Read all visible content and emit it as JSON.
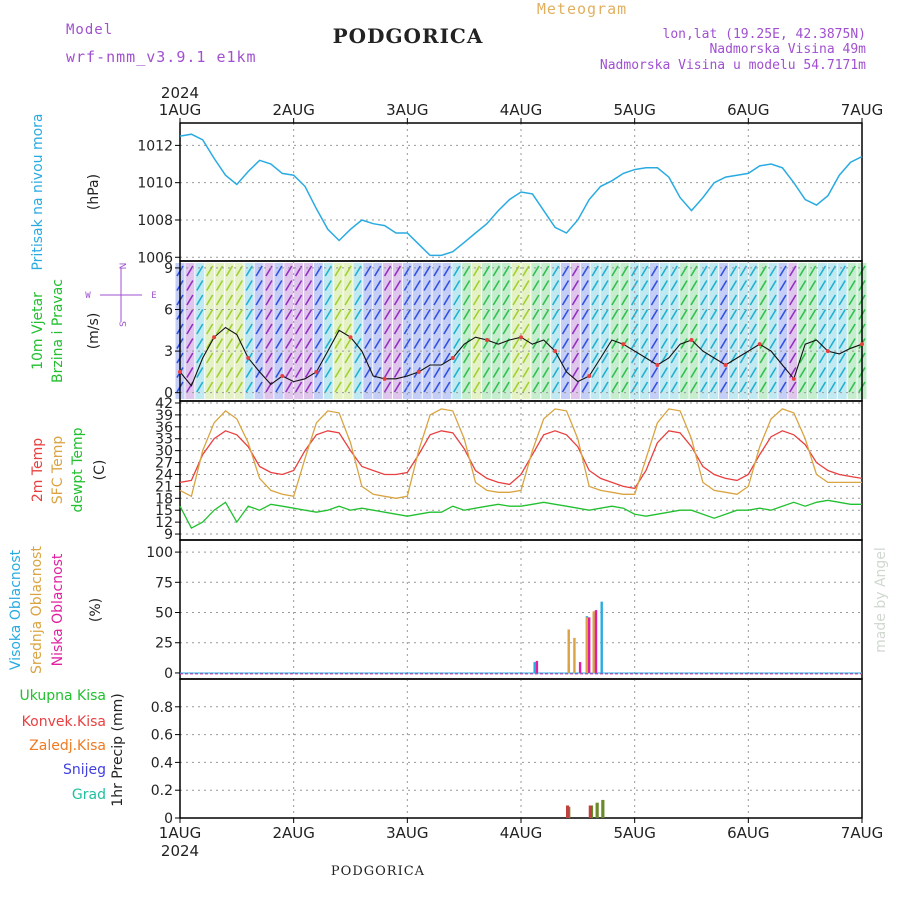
{
  "header": {
    "model_label": "Model",
    "model_name": "wrf-nmm_v3.9.1 e1km",
    "station_title": "PODGORICA",
    "meteogram_label": "Meteogram",
    "coords": "lon,lat (19.25E, 42.3875N)",
    "elevation": "Nadmorska Visina 49m",
    "model_elevation": "Nadmorska Visina u modelu 54.7171m"
  },
  "footer": {
    "station": "PODGORICA",
    "credit": "made by Angel"
  },
  "time_axis": {
    "year": "2024",
    "ticks": [
      "1AUG",
      "2AUG",
      "3AUG",
      "4AUG",
      "5AUG",
      "6AUG",
      "7AUG"
    ]
  },
  "wind_compass": {
    "n": "N",
    "s": "S",
    "w": "W",
    "e": "E"
  },
  "colors": {
    "pressure": "#29abe2",
    "temp2m": "#e84040",
    "sfc_temp": "#d9a441",
    "dewpt": "#22c030",
    "high_cloud": "#29abe2",
    "mid_cloud": "#d9a441",
    "low_cloud": "#e020a0",
    "total_precip": "#22c030",
    "convective": "#e84040",
    "grid_scale": "#f07a20",
    "snow": "#4040e0",
    "graupel": "#20c0a0"
  },
  "chart_data": [
    {
      "type": "line",
      "panel": "pressure",
      "ylabel_title": "Pritisak na nivou mora",
      "ylabel_unit": "(hPa)",
      "ylim": [
        1005.8,
        1013.2
      ],
      "yticks": [
        1006,
        1008,
        1010,
        1012
      ],
      "xlim": [
        0,
        6
      ],
      "grid": true,
      "series": [
        {
          "x": [
            0,
            0.1,
            0.2,
            0.3,
            0.4,
            0.5,
            0.6,
            0.7,
            0.8,
            0.9,
            1.0,
            1.1,
            1.2,
            1.3,
            1.4,
            1.5,
            1.6,
            1.7,
            1.8,
            1.9,
            2.0,
            2.1,
            2.2,
            2.3,
            2.4,
            2.5,
            2.6,
            2.7,
            2.8,
            2.9,
            3.0,
            3.1,
            3.2,
            3.3,
            3.4,
            3.5,
            3.6,
            3.7,
            3.8,
            3.9,
            4.0,
            4.1,
            4.2,
            4.3,
            4.4,
            4.5,
            4.6,
            4.7,
            4.8,
            4.9,
            5.0,
            5.1,
            5.2,
            5.3,
            5.4,
            5.5,
            5.6,
            5.7,
            5.8,
            5.9,
            6.0
          ],
          "values": [
            1012.5,
            1012.6,
            1012.3,
            1011.3,
            1010.4,
            1009.9,
            1010.6,
            1011.2,
            1011.0,
            1010.5,
            1010.4,
            1009.8,
            1008.6,
            1007.5,
            1006.9,
            1007.5,
            1008.0,
            1007.8,
            1007.7,
            1007.3,
            1007.3,
            1006.7,
            1006.1,
            1006.1,
            1006.3,
            1006.8,
            1007.3,
            1007.8,
            1008.5,
            1009.1,
            1009.5,
            1009.4,
            1008.5,
            1007.6,
            1007.3,
            1008.0,
            1009.1,
            1009.8,
            1010.1,
            1010.5,
            1010.7,
            1010.8,
            1010.8,
            1010.3,
            1009.2,
            1008.5,
            1009.2,
            1010.0,
            1010.3,
            1010.4,
            1010.5,
            1010.9,
            1011.0,
            1010.8,
            1010.0,
            1009.1,
            1008.8,
            1009.3,
            1010.4,
            1011.1,
            1011.4
          ]
        }
      ]
    },
    {
      "type": "line",
      "panel": "wind",
      "ylabel_title1": "10m Vjetar",
      "ylabel_title2": "Brzina i Pravac",
      "ylabel_unit": "(m/s)",
      "ylim": [
        -0.6,
        9.5
      ],
      "yticks": [
        0,
        3,
        6,
        9
      ],
      "xlim": [
        0,
        6
      ],
      "grid": true,
      "series": [
        {
          "name": "speed",
          "x": [
            0,
            0.1,
            0.2,
            0.3,
            0.4,
            0.5,
            0.6,
            0.7,
            0.8,
            0.9,
            1.0,
            1.1,
            1.2,
            1.3,
            1.4,
            1.5,
            1.6,
            1.7,
            1.8,
            1.9,
            2.0,
            2.1,
            2.2,
            2.3,
            2.4,
            2.5,
            2.6,
            2.7,
            2.8,
            2.9,
            3.0,
            3.1,
            3.2,
            3.3,
            3.4,
            3.5,
            3.6,
            3.7,
            3.8,
            3.9,
            4.0,
            4.1,
            4.2,
            4.3,
            4.4,
            4.5,
            4.6,
            4.7,
            4.8,
            4.9,
            5.0,
            5.1,
            5.2,
            5.3,
            5.4,
            5.5,
            5.6,
            5.7,
            5.8,
            5.9,
            6.0
          ],
          "values": [
            1.5,
            0.5,
            2.5,
            4.0,
            4.7,
            4.2,
            2.5,
            1.5,
            0.6,
            1.2,
            0.8,
            1.0,
            1.5,
            3.0,
            4.5,
            4.0,
            3.0,
            1.2,
            1.0,
            1.0,
            1.2,
            1.5,
            2.0,
            2.0,
            2.5,
            3.5,
            4.0,
            3.8,
            3.5,
            3.8,
            4.0,
            3.5,
            3.8,
            3.0,
            1.5,
            0.8,
            1.2,
            2.5,
            3.8,
            3.5,
            3.0,
            2.5,
            2.0,
            2.5,
            3.5,
            3.8,
            3.0,
            2.5,
            2.0,
            2.5,
            3.0,
            3.5,
            3.0,
            2.0,
            1.0,
            3.5,
            3.8,
            3.0,
            2.8,
            3.2,
            3.5
          ]
        }
      ]
    },
    {
      "type": "line",
      "panel": "temperature",
      "ylabel_title1": "2m Temp",
      "ylabel_title2": "SFC Temp",
      "ylabel_title3": "dewpt Temp",
      "ylabel_unit": "(C)",
      "ylim": [
        7.5,
        42.5
      ],
      "yticks": [
        9,
        12,
        15,
        18,
        21,
        24,
        27,
        30,
        33,
        36,
        39,
        42
      ],
      "xlim": [
        0,
        6
      ],
      "grid": true,
      "x": [
        0,
        0.1,
        0.2,
        0.3,
        0.4,
        0.5,
        0.6,
        0.7,
        0.8,
        0.9,
        1.0,
        1.1,
        1.2,
        1.3,
        1.4,
        1.5,
        1.6,
        1.7,
        1.8,
        1.9,
        2.0,
        2.1,
        2.2,
        2.3,
        2.4,
        2.5,
        2.6,
        2.7,
        2.8,
        2.9,
        3.0,
        3.1,
        3.2,
        3.3,
        3.4,
        3.5,
        3.6,
        3.7,
        3.8,
        3.9,
        4.0,
        4.1,
        4.2,
        4.3,
        4.4,
        4.5,
        4.6,
        4.7,
        4.8,
        4.9,
        5.0,
        5.1,
        5.2,
        5.3,
        5.4,
        5.5,
        5.6,
        5.7,
        5.8,
        5.9,
        6.0
      ],
      "series": [
        {
          "name": "2m Temp",
          "values": [
            22.0,
            22.5,
            29.0,
            33.0,
            35.0,
            34.0,
            31.0,
            26.0,
            24.5,
            24.0,
            25.0,
            30.0,
            34.0,
            35.0,
            34.5,
            30.0,
            26.0,
            25.0,
            24.0,
            24.0,
            24.5,
            29.0,
            34.0,
            35.0,
            34.5,
            30.5,
            25.0,
            23.0,
            22.0,
            21.5,
            24.0,
            29.0,
            34.0,
            35.0,
            34.0,
            31.0,
            25.0,
            23.0,
            22.0,
            21.0,
            20.5,
            25.0,
            32.0,
            35.0,
            34.5,
            31.0,
            26.0,
            24.0,
            23.0,
            22.5,
            24.0,
            29.0,
            33.5,
            35.0,
            34.0,
            31.5,
            27.0,
            25.0,
            24.0,
            23.5,
            23.0
          ]
        },
        {
          "name": "SFC Temp",
          "values": [
            20.0,
            18.5,
            30.0,
            37.0,
            40.0,
            38.0,
            32.0,
            23.0,
            20.0,
            19.0,
            18.5,
            28.0,
            37.0,
            40.0,
            39.5,
            32.0,
            21.0,
            19.0,
            18.5,
            18.0,
            18.5,
            30.0,
            39.0,
            40.5,
            40.0,
            33.0,
            22.0,
            20.0,
            19.5,
            19.5,
            20.0,
            30.0,
            38.0,
            40.5,
            40.0,
            33.0,
            21.0,
            20.0,
            19.5,
            19.0,
            19.0,
            28.0,
            37.0,
            40.5,
            40.0,
            33.0,
            22.0,
            20.0,
            19.5,
            19.0,
            21.0,
            31.0,
            38.0,
            40.5,
            39.5,
            33.0,
            24.0,
            22.0,
            22.0,
            22.0,
            22.0
          ]
        },
        {
          "name": "dewpt Temp",
          "values": [
            16.0,
            10.5,
            12.0,
            15.0,
            17.0,
            12.0,
            16.0,
            15.0,
            16.5,
            16.0,
            15.5,
            15.0,
            14.5,
            15.0,
            16.0,
            15.0,
            15.5,
            15.0,
            14.5,
            14.0,
            13.5,
            14.0,
            14.5,
            14.5,
            16.0,
            15.0,
            15.5,
            16.0,
            16.5,
            16.0,
            16.0,
            16.5,
            17.0,
            16.5,
            16.0,
            15.5,
            15.0,
            15.5,
            16.0,
            15.5,
            14.0,
            13.5,
            14.0,
            14.5,
            15.0,
            15.0,
            14.0,
            13.0,
            14.0,
            15.0,
            15.0,
            15.5,
            15.0,
            16.0,
            17.0,
            16.0,
            17.0,
            17.5,
            17.0,
            16.5,
            16.5
          ]
        }
      ]
    },
    {
      "type": "bar",
      "panel": "cloud",
      "ylabel_title1": "Visoka Oblacnost",
      "ylabel_title2": "Srednja Oblacnost",
      "ylabel_title3": "Niska Oblacnost",
      "ylabel_unit": "(%)",
      "ylim": [
        -5,
        110
      ],
      "yticks": [
        0,
        25,
        50,
        75,
        100
      ],
      "xlim": [
        0,
        6
      ],
      "grid": true,
      "series": [
        {
          "name": "Visoka Oblacnost",
          "x": [
            3.12,
            3.42,
            3.58,
            3.64,
            3.71
          ],
          "values": [
            9,
            7,
            47,
            49,
            59
          ]
        },
        {
          "name": "Srednja Oblacnost",
          "x": [
            3.42,
            3.47,
            3.58,
            3.64
          ],
          "values": [
            36,
            29,
            46,
            51
          ]
        },
        {
          "name": "Niska Oblacnost",
          "x": [
            3.14,
            3.52,
            3.6,
            3.66
          ],
          "values": [
            10,
            9,
            46,
            52
          ]
        }
      ]
    },
    {
      "type": "bar",
      "panel": "precip",
      "ylabel_unit": "1hr Precip (mm)",
      "legend": [
        "Ukupna Kisa",
        "Konvek.Kisa",
        "Zaledj.Kisa",
        "Snijeg",
        "Grad"
      ],
      "ylim": [
        0,
        1.0
      ],
      "yticks": [
        0,
        0.2,
        0.4,
        0.6,
        0.8
      ],
      "xlim": [
        0,
        6
      ],
      "grid": true,
      "series": [
        {
          "name": "Ukupna Kisa",
          "x": [
            3.42,
            3.62,
            3.67,
            3.72
          ],
          "values": [
            0.08,
            0.09,
            0.11,
            0.13
          ]
        },
        {
          "name": "Konvek.Kisa",
          "x": [
            3.41,
            3.61
          ],
          "values": [
            0.09,
            0.09
          ]
        }
      ]
    }
  ]
}
